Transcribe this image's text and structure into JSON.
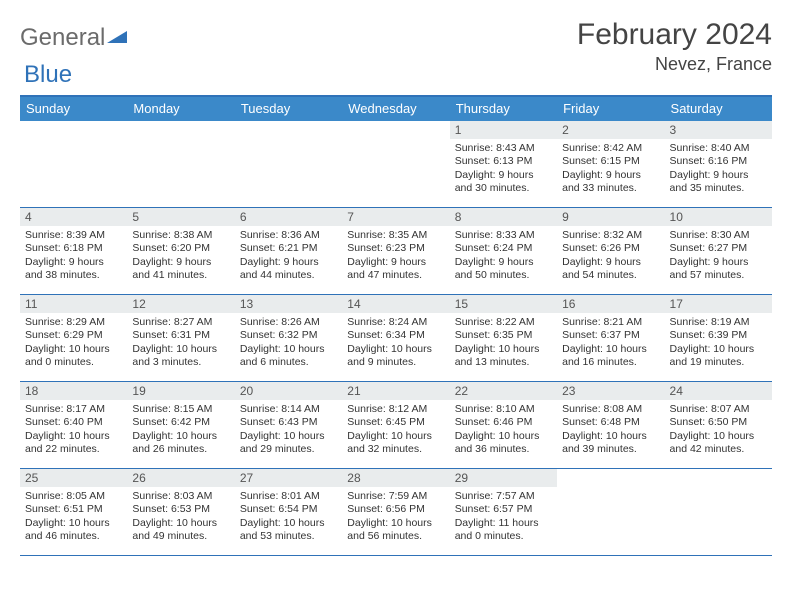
{
  "logo": {
    "text1": "General",
    "text2": "Blue"
  },
  "title": "February 2024",
  "location": "Nevez, France",
  "colors": {
    "header_bg": "#3b89c9",
    "border": "#2f72b8",
    "daynum_bg": "#e9eced",
    "text": "#333333",
    "title": "#444444"
  },
  "dayNames": [
    "Sunday",
    "Monday",
    "Tuesday",
    "Wednesday",
    "Thursday",
    "Friday",
    "Saturday"
  ],
  "weeks": [
    [
      null,
      null,
      null,
      null,
      {
        "n": "1",
        "sr": "8:43 AM",
        "ss": "6:13 PM",
        "dl": "9 hours and 30 minutes."
      },
      {
        "n": "2",
        "sr": "8:42 AM",
        "ss": "6:15 PM",
        "dl": "9 hours and 33 minutes."
      },
      {
        "n": "3",
        "sr": "8:40 AM",
        "ss": "6:16 PM",
        "dl": "9 hours and 35 minutes."
      }
    ],
    [
      {
        "n": "4",
        "sr": "8:39 AM",
        "ss": "6:18 PM",
        "dl": "9 hours and 38 minutes."
      },
      {
        "n": "5",
        "sr": "8:38 AM",
        "ss": "6:20 PM",
        "dl": "9 hours and 41 minutes."
      },
      {
        "n": "6",
        "sr": "8:36 AM",
        "ss": "6:21 PM",
        "dl": "9 hours and 44 minutes."
      },
      {
        "n": "7",
        "sr": "8:35 AM",
        "ss": "6:23 PM",
        "dl": "9 hours and 47 minutes."
      },
      {
        "n": "8",
        "sr": "8:33 AM",
        "ss": "6:24 PM",
        "dl": "9 hours and 50 minutes."
      },
      {
        "n": "9",
        "sr": "8:32 AM",
        "ss": "6:26 PM",
        "dl": "9 hours and 54 minutes."
      },
      {
        "n": "10",
        "sr": "8:30 AM",
        "ss": "6:27 PM",
        "dl": "9 hours and 57 minutes."
      }
    ],
    [
      {
        "n": "11",
        "sr": "8:29 AM",
        "ss": "6:29 PM",
        "dl": "10 hours and 0 minutes."
      },
      {
        "n": "12",
        "sr": "8:27 AM",
        "ss": "6:31 PM",
        "dl": "10 hours and 3 minutes."
      },
      {
        "n": "13",
        "sr": "8:26 AM",
        "ss": "6:32 PM",
        "dl": "10 hours and 6 minutes."
      },
      {
        "n": "14",
        "sr": "8:24 AM",
        "ss": "6:34 PM",
        "dl": "10 hours and 9 minutes."
      },
      {
        "n": "15",
        "sr": "8:22 AM",
        "ss": "6:35 PM",
        "dl": "10 hours and 13 minutes."
      },
      {
        "n": "16",
        "sr": "8:21 AM",
        "ss": "6:37 PM",
        "dl": "10 hours and 16 minutes."
      },
      {
        "n": "17",
        "sr": "8:19 AM",
        "ss": "6:39 PM",
        "dl": "10 hours and 19 minutes."
      }
    ],
    [
      {
        "n": "18",
        "sr": "8:17 AM",
        "ss": "6:40 PM",
        "dl": "10 hours and 22 minutes."
      },
      {
        "n": "19",
        "sr": "8:15 AM",
        "ss": "6:42 PM",
        "dl": "10 hours and 26 minutes."
      },
      {
        "n": "20",
        "sr": "8:14 AM",
        "ss": "6:43 PM",
        "dl": "10 hours and 29 minutes."
      },
      {
        "n": "21",
        "sr": "8:12 AM",
        "ss": "6:45 PM",
        "dl": "10 hours and 32 minutes."
      },
      {
        "n": "22",
        "sr": "8:10 AM",
        "ss": "6:46 PM",
        "dl": "10 hours and 36 minutes."
      },
      {
        "n": "23",
        "sr": "8:08 AM",
        "ss": "6:48 PM",
        "dl": "10 hours and 39 minutes."
      },
      {
        "n": "24",
        "sr": "8:07 AM",
        "ss": "6:50 PM",
        "dl": "10 hours and 42 minutes."
      }
    ],
    [
      {
        "n": "25",
        "sr": "8:05 AM",
        "ss": "6:51 PM",
        "dl": "10 hours and 46 minutes."
      },
      {
        "n": "26",
        "sr": "8:03 AM",
        "ss": "6:53 PM",
        "dl": "10 hours and 49 minutes."
      },
      {
        "n": "27",
        "sr": "8:01 AM",
        "ss": "6:54 PM",
        "dl": "10 hours and 53 minutes."
      },
      {
        "n": "28",
        "sr": "7:59 AM",
        "ss": "6:56 PM",
        "dl": "10 hours and 56 minutes."
      },
      {
        "n": "29",
        "sr": "7:57 AM",
        "ss": "6:57 PM",
        "dl": "11 hours and 0 minutes."
      },
      null,
      null
    ]
  ],
  "labels": {
    "sunrise": "Sunrise: ",
    "sunset": "Sunset: ",
    "daylight": "Daylight: "
  }
}
